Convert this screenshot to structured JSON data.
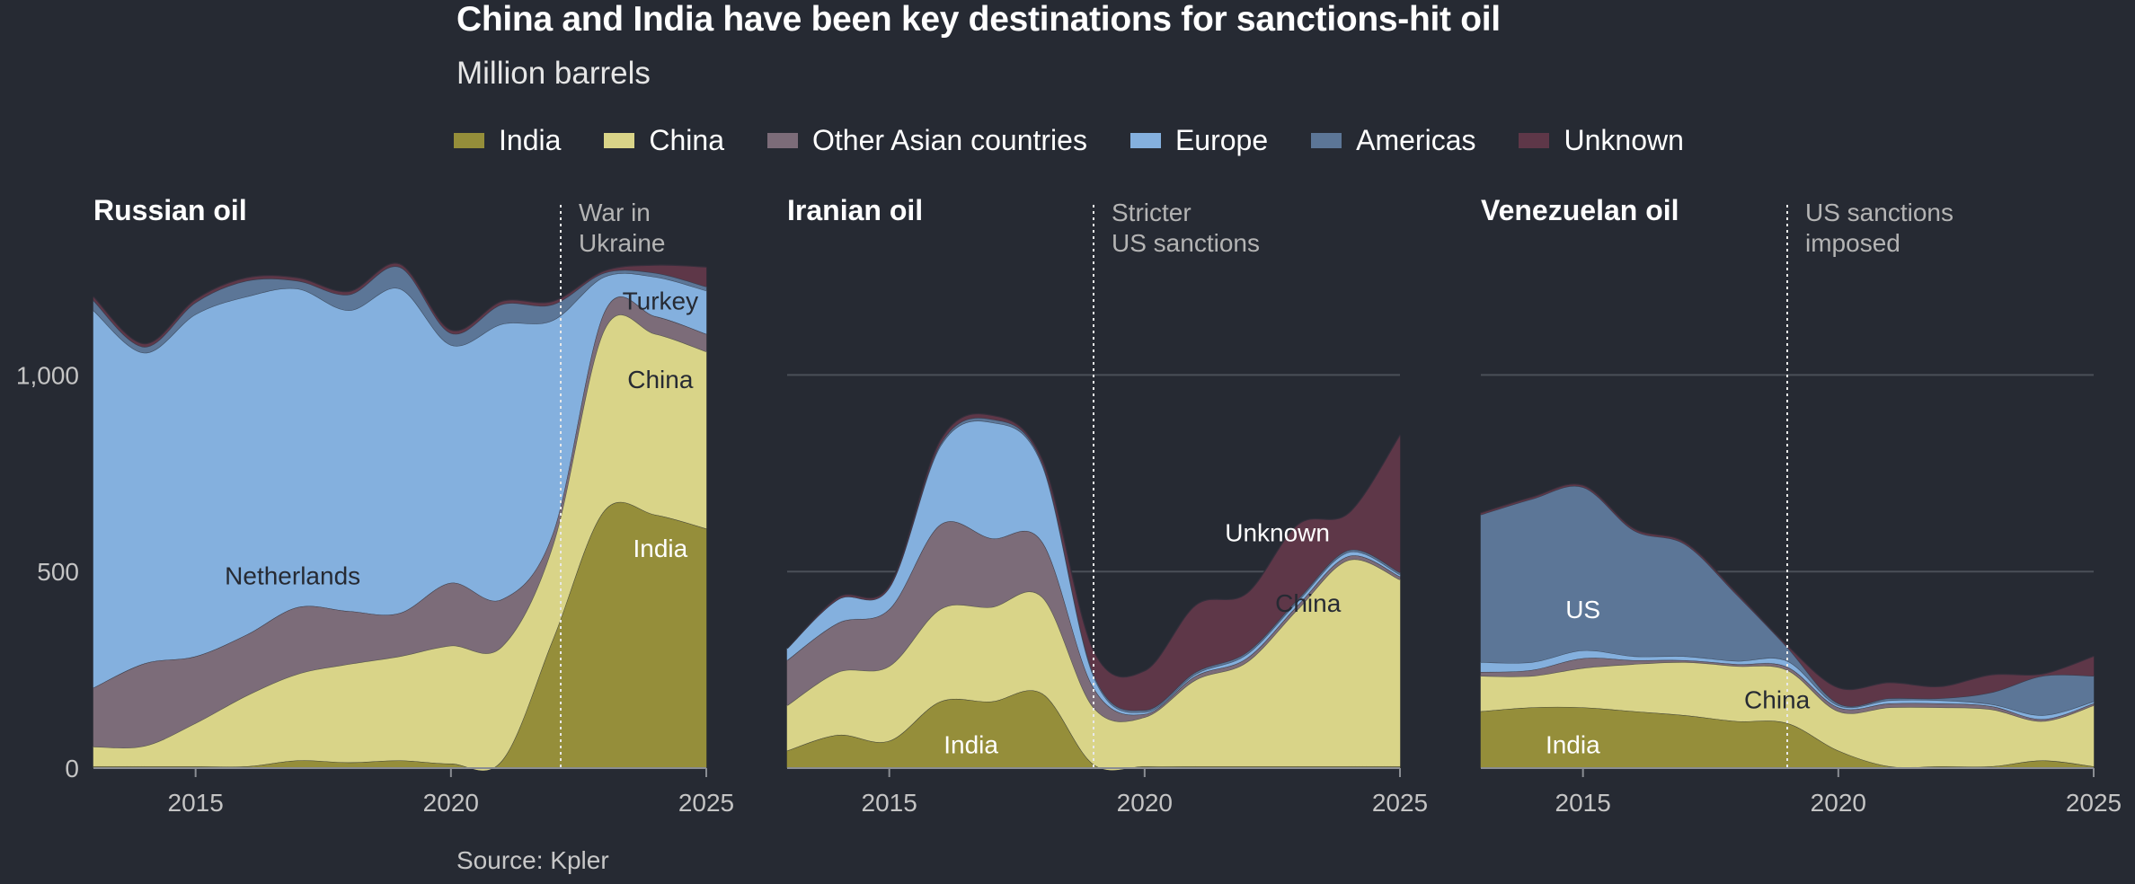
{
  "title": "China and India have been key destinations for sanctions-hit oil",
  "subtitle": "Million barrels",
  "source": "Source: Kpler",
  "legend": [
    {
      "name": "India",
      "color": "#958e3a"
    },
    {
      "name": "China",
      "color": "#d9d488"
    },
    {
      "name": "Other Asian countries",
      "color": "#7c6c79"
    },
    {
      "name": "Europe",
      "color": "#84b0de"
    },
    {
      "name": "Americas",
      "color": "#5c7697"
    },
    {
      "name": "Unknown",
      "color": "#5e3748"
    }
  ],
  "chart_data": [
    {
      "type": "area",
      "title": "Russian oil",
      "x": [
        2013,
        2014,
        2015,
        2016,
        2017,
        2018,
        2019,
        2020,
        2021,
        2022,
        2023,
        2024,
        2025
      ],
      "xlim": [
        2013,
        2025
      ],
      "ylim": [
        0,
        1300
      ],
      "x_ticks": [
        "2015",
        "2020",
        "2025"
      ],
      "y_ticks": [
        "0",
        "500",
        "1,000"
      ],
      "gridlines": true,
      "series": [
        {
          "name": "India",
          "values": [
            5,
            5,
            5,
            5,
            20,
            15,
            20,
            12,
            20,
            330,
            655,
            645,
            610
          ]
        },
        {
          "name": "China",
          "values": [
            50,
            52,
            110,
            180,
            220,
            250,
            265,
            300,
            290,
            240,
            460,
            460,
            450
          ]
        },
        {
          "name": "Other Asian countries",
          "values": [
            150,
            210,
            170,
            155,
            170,
            135,
            110,
            160,
            120,
            30,
            45,
            45,
            45
          ]
        },
        {
          "name": "Europe",
          "values": [
            960,
            790,
            870,
            860,
            810,
            765,
            825,
            605,
            700,
            540,
            90,
            100,
            110
          ]
        },
        {
          "name": "Americas",
          "values": [
            25,
            15,
            30,
            40,
            20,
            40,
            55,
            30,
            50,
            40,
            10,
            10,
            10
          ]
        },
        {
          "name": "Unknown",
          "values": [
            10,
            8,
            8,
            8,
            8,
            8,
            8,
            8,
            8,
            8,
            5,
            20,
            50
          ]
        }
      ],
      "labels": [
        {
          "text": "Turkey",
          "x": 2024.1,
          "y": 1190,
          "color": "#262a33"
        },
        {
          "text": "China",
          "x": 2024.1,
          "y": 990,
          "color": "#262a33"
        },
        {
          "text": "India",
          "x": 2024.1,
          "y": 560,
          "color": "#ffffff"
        },
        {
          "text": "Netherlands",
          "x": 2016.9,
          "y": 490,
          "color": "#262a33"
        }
      ],
      "event": {
        "x": 2022.15,
        "label": [
          "War in",
          "Ukraine"
        ]
      }
    },
    {
      "type": "area",
      "title": "Iranian oil",
      "x": [
        2013,
        2014,
        2015,
        2016,
        2017,
        2018,
        2019,
        2020,
        2021,
        2022,
        2023,
        2024,
        2025
      ],
      "xlim": [
        2013,
        2025
      ],
      "ylim": [
        0,
        1300
      ],
      "x_ticks": [
        "2015",
        "2020",
        "2025"
      ],
      "y_ticks": [
        "0",
        "500",
        "1,000"
      ],
      "gridlines": true,
      "series": [
        {
          "name": "India",
          "values": [
            45,
            85,
            70,
            170,
            170,
            190,
            10,
            5,
            5,
            5,
            5,
            5,
            5
          ]
        },
        {
          "name": "China",
          "values": [
            115,
            160,
            190,
            235,
            240,
            245,
            145,
            125,
            220,
            265,
            400,
            525,
            475
          ]
        },
        {
          "name": "Other Asian countries",
          "values": [
            115,
            125,
            145,
            215,
            175,
            140,
            50,
            8,
            10,
            10,
            10,
            10,
            8
          ]
        },
        {
          "name": "Europe",
          "values": [
            30,
            60,
            55,
            200,
            295,
            195,
            30,
            5,
            5,
            10,
            10,
            10,
            5
          ]
        },
        {
          "name": "Americas",
          "values": [
            0,
            0,
            0,
            5,
            8,
            5,
            5,
            5,
            5,
            5,
            5,
            5,
            5
          ]
        },
        {
          "name": "Unknown",
          "values": [
            0,
            5,
            5,
            10,
            10,
            10,
            60,
            100,
            170,
            150,
            190,
            95,
            350
          ]
        }
      ],
      "labels": [
        {
          "text": "Unknown",
          "x": 2022.6,
          "y": 600,
          "color": "#ffffff"
        },
        {
          "text": "China",
          "x": 2023.2,
          "y": 420,
          "color": "#262a33"
        },
        {
          "text": "India",
          "x": 2016.6,
          "y": 60,
          "color": "#ffffff"
        }
      ],
      "event": {
        "x": 2019.0,
        "label": [
          "Stricter",
          "US sanctions"
        ]
      }
    },
    {
      "type": "area",
      "title": "Venezuelan oil",
      "x": [
        2013,
        2014,
        2015,
        2016,
        2017,
        2018,
        2019,
        2020,
        2021,
        2022,
        2023,
        2024,
        2025
      ],
      "xlim": [
        2013,
        2025
      ],
      "ylim": [
        0,
        1300
      ],
      "x_ticks": [
        "2015",
        "2020",
        "2025"
      ],
      "y_ticks": [
        "0",
        "500",
        "1,000"
      ],
      "gridlines": true,
      "series": [
        {
          "name": "India",
          "values": [
            145,
            155,
            155,
            145,
            135,
            120,
            115,
            45,
            5,
            5,
            5,
            20,
            5
          ]
        },
        {
          "name": "China",
          "values": [
            90,
            80,
            100,
            120,
            135,
            140,
            135,
            100,
            150,
            150,
            145,
            100,
            155
          ]
        },
        {
          "name": "Other Asian countries",
          "values": [
            10,
            15,
            25,
            10,
            5,
            5,
            8,
            10,
            10,
            10,
            8,
            5,
            5
          ]
        },
        {
          "name": "Europe",
          "values": [
            25,
            20,
            20,
            10,
            10,
            8,
            15,
            5,
            8,
            8,
            5,
            10,
            5
          ]
        },
        {
          "name": "Americas",
          "values": [
            375,
            415,
            415,
            320,
            285,
            170,
            35,
            5,
            5,
            5,
            30,
            100,
            65
          ]
        },
        {
          "name": "Unknown",
          "values": [
            5,
            5,
            5,
            5,
            5,
            5,
            5,
            40,
            40,
            30,
            45,
            5,
            50
          ]
        }
      ],
      "labels": [
        {
          "text": "US",
          "x": 2015.0,
          "y": 405,
          "color": "#ffffff"
        },
        {
          "text": "China",
          "x": 2018.8,
          "y": 175,
          "color": "#262a33"
        },
        {
          "text": "India",
          "x": 2014.8,
          "y": 60,
          "color": "#ffffff"
        }
      ],
      "event": {
        "x": 2019.0,
        "label": [
          "US sanctions",
          "imposed"
        ]
      }
    }
  ]
}
